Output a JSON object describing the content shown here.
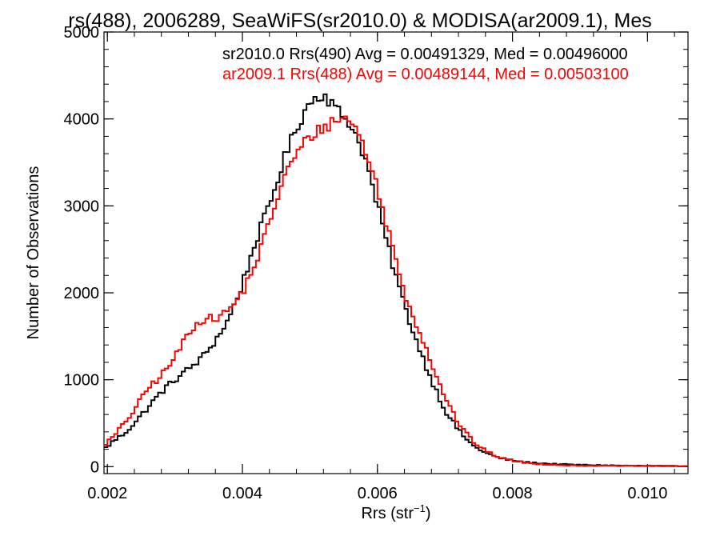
{
  "chart_data": {
    "type": "line",
    "title": "rs(488), 2006289, SeaWiFS(sr2010.0) & MODISA(ar2009.1), Mes",
    "xlabel_main": "Rrs (str",
    "xlabel_sup": "−1",
    "xlabel_close": ")",
    "ylabel": "Number of Observations",
    "xlim": [
      0.00195,
      0.0106
    ],
    "ylim": [
      -80,
      5000
    ],
    "xticks": [
      0.002,
      0.004,
      0.006,
      0.008,
      0.01
    ],
    "xtick_labels": [
      "0.002",
      "0.004",
      "0.006",
      "0.008",
      "0.010"
    ],
    "yticks": [
      0,
      1000,
      2000,
      3000,
      4000,
      5000
    ],
    "ytick_labels": [
      "0",
      "1000",
      "2000",
      "3000",
      "4000",
      "5000"
    ],
    "bin_width": 5e-05,
    "grid": false,
    "legend_position": "top-right",
    "series": [
      {
        "name": "sr2010.0 Rrs(490) Avg = 0.00491329, Med = 0.00496000",
        "color": "#000000",
        "points": [
          [
            0.00195,
            200
          ],
          [
            0.0021,
            300
          ],
          [
            0.00225,
            380
          ],
          [
            0.0024,
            500
          ],
          [
            0.0026,
            680
          ],
          [
            0.0028,
            860
          ],
          [
            0.003,
            1000
          ],
          [
            0.0032,
            1120
          ],
          [
            0.0034,
            1250
          ],
          [
            0.0036,
            1450
          ],
          [
            0.0038,
            1700
          ],
          [
            0.004,
            2100
          ],
          [
            0.0042,
            2600
          ],
          [
            0.0044,
            3000
          ],
          [
            0.0046,
            3500
          ],
          [
            0.0048,
            3900
          ],
          [
            0.005,
            4200
          ],
          [
            0.0052,
            4300
          ],
          [
            0.0054,
            4100
          ],
          [
            0.0056,
            3950
          ],
          [
            0.0058,
            3600
          ],
          [
            0.006,
            3000
          ],
          [
            0.0062,
            2400
          ],
          [
            0.0064,
            1850
          ],
          [
            0.0066,
            1400
          ],
          [
            0.0068,
            1000
          ],
          [
            0.007,
            650
          ],
          [
            0.0072,
            420
          ],
          [
            0.0074,
            250
          ],
          [
            0.0076,
            160
          ],
          [
            0.0078,
            100
          ],
          [
            0.008,
            70
          ],
          [
            0.0082,
            50
          ],
          [
            0.0084,
            40
          ],
          [
            0.0086,
            30
          ],
          [
            0.0088,
            25
          ],
          [
            0.009,
            20
          ],
          [
            0.0094,
            15
          ],
          [
            0.0098,
            10
          ],
          [
            0.0102,
            8
          ],
          [
            0.0106,
            5
          ]
        ]
      },
      {
        "name": "ar2009.1 Rrs(488) Avg = 0.00489144, Med = 0.00503100",
        "color": "#ff0000",
        "points": [
          [
            0.00195,
            250
          ],
          [
            0.0021,
            350
          ],
          [
            0.00225,
            500
          ],
          [
            0.0024,
            650
          ],
          [
            0.0026,
            900
          ],
          [
            0.0028,
            1050
          ],
          [
            0.003,
            1250
          ],
          [
            0.0032,
            1550
          ],
          [
            0.0034,
            1700
          ],
          [
            0.0036,
            1700
          ],
          [
            0.0038,
            1800
          ],
          [
            0.004,
            2000
          ],
          [
            0.0042,
            2350
          ],
          [
            0.0044,
            2800
          ],
          [
            0.0046,
            3300
          ],
          [
            0.0048,
            3600
          ],
          [
            0.005,
            3800
          ],
          [
            0.0052,
            3900
          ],
          [
            0.0054,
            4000
          ],
          [
            0.0056,
            4000
          ],
          [
            0.0058,
            3700
          ],
          [
            0.006,
            3200
          ],
          [
            0.0062,
            2600
          ],
          [
            0.0064,
            2000
          ],
          [
            0.0066,
            1600
          ],
          [
            0.0068,
            1200
          ],
          [
            0.007,
            800
          ],
          [
            0.0072,
            500
          ],
          [
            0.0074,
            300
          ],
          [
            0.0076,
            180
          ],
          [
            0.0078,
            110
          ],
          [
            0.008,
            70
          ],
          [
            0.0082,
            45
          ],
          [
            0.0084,
            30
          ],
          [
            0.0086,
            22
          ],
          [
            0.0088,
            15
          ],
          [
            0.009,
            12
          ],
          [
            0.0094,
            10
          ],
          [
            0.0098,
            8
          ],
          [
            0.0102,
            6
          ],
          [
            0.0106,
            5
          ]
        ]
      }
    ]
  }
}
